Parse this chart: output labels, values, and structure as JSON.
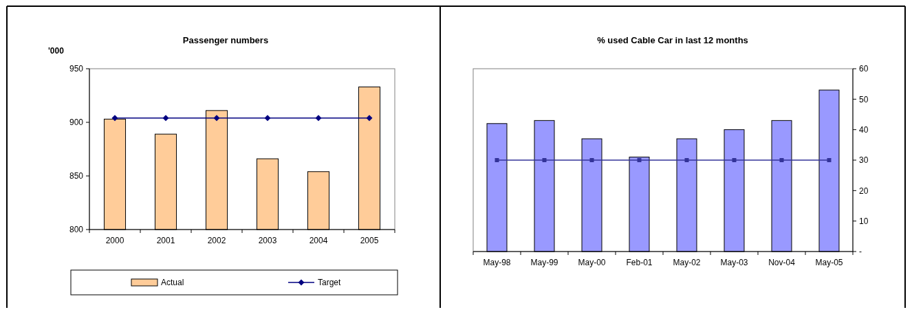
{
  "chart_data": [
    {
      "type": "bar",
      "title": "Passenger numbers",
      "ylabel": "'000",
      "categories": [
        "2000",
        "2001",
        "2002",
        "2003",
        "2004",
        "2005"
      ],
      "ylim": [
        800,
        950
      ],
      "yticks": [
        800,
        850,
        900,
        950
      ],
      "legend": "bottom",
      "grid": false,
      "marker": "diamond",
      "series": [
        {
          "name": "Actual",
          "color": "#ffcc99",
          "values": [
            903,
            889,
            911,
            866,
            854,
            933
          ]
        },
        {
          "name": "Target",
          "type": "line",
          "color": "#000080",
          "values": [
            904,
            904,
            904,
            904,
            904,
            904
          ]
        }
      ]
    },
    {
      "type": "bar",
      "title": "% used Cable Car in last 12 months",
      "categories": [
        "May-98",
        "May-99",
        "May-00",
        "Feb-01",
        "May-02",
        "May-03",
        "Nov-04",
        "May-05"
      ],
      "y2lim": [
        0,
        60
      ],
      "y2ticks": [
        {
          "value": 0,
          "label": "-"
        },
        10,
        20,
        30,
        40,
        50,
        60
      ],
      "legend": false,
      "grid": false,
      "marker": "square",
      "series": [
        {
          "axis": "y2",
          "color": "#9999ff",
          "values": [
            42,
            43,
            37,
            31,
            37,
            40,
            43,
            53
          ]
        },
        {
          "type": "line",
          "axis": "y2",
          "color": "#333399",
          "values": [
            30,
            30,
            30,
            30,
            30,
            30,
            30,
            30
          ]
        }
      ]
    }
  ]
}
